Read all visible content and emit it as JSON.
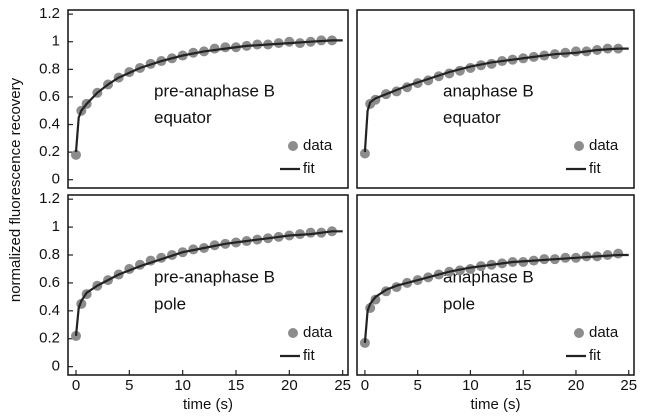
{
  "ylabel": "normalized fluorescence recovery",
  "chart_data": [
    {
      "type": "scatter",
      "annotation": [
        "pre-anaphase B",
        "equator"
      ],
      "xlim": [
        -0.75,
        25.5
      ],
      "ylim": [
        -0.06,
        1.23
      ],
      "yticks": [
        0,
        0.2,
        0.4,
        0.6,
        0.8,
        1,
        1.2
      ],
      "series": [
        {
          "name": "data",
          "style": "points",
          "color": "#8c8c8c",
          "x": [
            0,
            0.5,
            1,
            2,
            3,
            4,
            5,
            6,
            7,
            8,
            9,
            10,
            11,
            12,
            13,
            14,
            15,
            16,
            17,
            18,
            19,
            20,
            21,
            22,
            23,
            24
          ],
          "values": [
            0.18,
            0.5,
            0.55,
            0.63,
            0.69,
            0.74,
            0.78,
            0.81,
            0.84,
            0.86,
            0.88,
            0.9,
            0.92,
            0.93,
            0.95,
            0.96,
            0.96,
            0.97,
            0.98,
            0.98,
            0.99,
            1.0,
            0.99,
            1.0,
            1.01,
            1.01
          ]
        },
        {
          "name": "fit",
          "style": "line",
          "color": "#222222",
          "x": [
            0,
            0.25,
            0.5,
            1,
            2,
            3,
            4,
            6,
            8,
            10,
            12,
            14,
            16,
            18,
            20,
            22,
            24,
            25
          ],
          "values": [
            0.2,
            0.45,
            0.5,
            0.55,
            0.63,
            0.69,
            0.74,
            0.81,
            0.86,
            0.9,
            0.93,
            0.95,
            0.97,
            0.98,
            0.99,
            1.0,
            1.01,
            1.01
          ]
        }
      ]
    },
    {
      "type": "scatter",
      "annotation": [
        "anaphase B",
        "equator"
      ],
      "xlim": [
        -0.75,
        25.5
      ],
      "ylim": [
        -0.06,
        1.23
      ],
      "series": [
        {
          "name": "data",
          "style": "points",
          "color": "#8c8c8c",
          "x": [
            0,
            0.5,
            1,
            2,
            3,
            4,
            5,
            6,
            7,
            8,
            9,
            10,
            11,
            12,
            13,
            14,
            15,
            16,
            17,
            18,
            19,
            20,
            21,
            22,
            23,
            24
          ],
          "values": [
            0.19,
            0.55,
            0.58,
            0.62,
            0.64,
            0.67,
            0.7,
            0.72,
            0.75,
            0.77,
            0.79,
            0.81,
            0.83,
            0.84,
            0.86,
            0.87,
            0.88,
            0.89,
            0.9,
            0.91,
            0.92,
            0.93,
            0.93,
            0.94,
            0.95,
            0.95
          ]
        },
        {
          "name": "fit",
          "style": "line",
          "color": "#222222",
          "x": [
            0,
            0.25,
            0.5,
            1,
            2,
            3,
            4,
            6,
            8,
            10,
            12,
            14,
            16,
            18,
            20,
            22,
            24,
            25
          ],
          "values": [
            0.2,
            0.5,
            0.56,
            0.59,
            0.62,
            0.65,
            0.68,
            0.73,
            0.78,
            0.82,
            0.85,
            0.87,
            0.89,
            0.91,
            0.92,
            0.94,
            0.95,
            0.95
          ]
        }
      ]
    },
    {
      "type": "scatter",
      "annotation": [
        "pre-anaphase B",
        "pole"
      ],
      "xlabel": "time (s)",
      "xlim": [
        -0.75,
        25.5
      ],
      "ylim": [
        -0.06,
        1.23
      ],
      "yticks": [
        0,
        0.2,
        0.4,
        0.6,
        0.8,
        1,
        1.2
      ],
      "xticks": [
        0,
        5,
        10,
        15,
        20,
        25
      ],
      "series": [
        {
          "name": "data",
          "style": "points",
          "color": "#8c8c8c",
          "x": [
            0,
            0.5,
            1,
            2,
            3,
            4,
            5,
            6,
            7,
            8,
            9,
            10,
            11,
            12,
            13,
            14,
            15,
            16,
            17,
            18,
            19,
            20,
            21,
            22,
            23,
            24
          ],
          "values": [
            0.22,
            0.45,
            0.52,
            0.58,
            0.62,
            0.66,
            0.7,
            0.73,
            0.76,
            0.78,
            0.8,
            0.82,
            0.84,
            0.85,
            0.87,
            0.88,
            0.89,
            0.9,
            0.91,
            0.92,
            0.93,
            0.94,
            0.95,
            0.96,
            0.96,
            0.97
          ]
        },
        {
          "name": "fit",
          "style": "line",
          "color": "#222222",
          "x": [
            0,
            0.25,
            0.5,
            1,
            2,
            3,
            4,
            6,
            8,
            10,
            12,
            14,
            16,
            18,
            20,
            22,
            24,
            25
          ],
          "values": [
            0.22,
            0.42,
            0.47,
            0.53,
            0.58,
            0.62,
            0.66,
            0.72,
            0.77,
            0.82,
            0.85,
            0.88,
            0.9,
            0.92,
            0.94,
            0.95,
            0.97,
            0.97
          ]
        }
      ]
    },
    {
      "type": "scatter",
      "annotation": [
        "anaphase B",
        "pole"
      ],
      "xlabel": "time (s)",
      "xlim": [
        -0.75,
        25.5
      ],
      "ylim": [
        -0.06,
        1.23
      ],
      "xticks": [
        0,
        5,
        10,
        15,
        20,
        25
      ],
      "series": [
        {
          "name": "data",
          "style": "points",
          "color": "#8c8c8c",
          "x": [
            0,
            0.5,
            1,
            2,
            3,
            4,
            5,
            6,
            7,
            8,
            9,
            10,
            11,
            12,
            13,
            14,
            15,
            16,
            17,
            18,
            19,
            20,
            21,
            22,
            23,
            24
          ],
          "values": [
            0.17,
            0.42,
            0.48,
            0.54,
            0.57,
            0.6,
            0.62,
            0.64,
            0.66,
            0.68,
            0.69,
            0.7,
            0.72,
            0.73,
            0.74,
            0.75,
            0.75,
            0.76,
            0.77,
            0.77,
            0.78,
            0.78,
            0.79,
            0.79,
            0.8,
            0.81
          ]
        },
        {
          "name": "fit",
          "style": "line",
          "color": "#222222",
          "x": [
            0,
            0.25,
            0.5,
            1,
            2,
            3,
            4,
            6,
            8,
            10,
            12,
            14,
            16,
            18,
            20,
            22,
            24,
            25
          ],
          "values": [
            0.17,
            0.4,
            0.45,
            0.5,
            0.55,
            0.58,
            0.6,
            0.64,
            0.68,
            0.71,
            0.73,
            0.75,
            0.76,
            0.77,
            0.78,
            0.79,
            0.8,
            0.8
          ]
        }
      ]
    }
  ]
}
